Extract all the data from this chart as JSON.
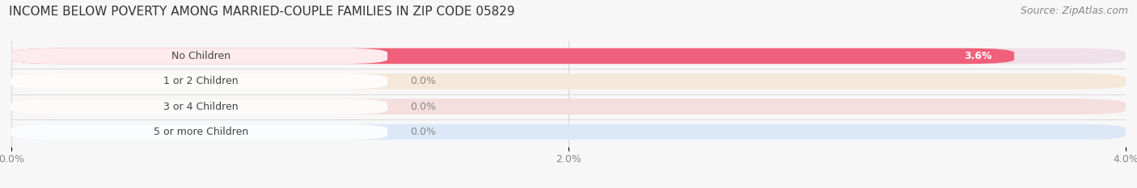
{
  "title": "INCOME BELOW POVERTY AMONG MARRIED-COUPLE FAMILIES IN ZIP CODE 05829",
  "source": "Source: ZipAtlas.com",
  "categories": [
    "No Children",
    "1 or 2 Children",
    "3 or 4 Children",
    "5 or more Children"
  ],
  "values": [
    3.6,
    0.0,
    0.0,
    0.0
  ],
  "bar_colors": [
    "#f0607a",
    "#e8b882",
    "#e88888",
    "#90aadc"
  ],
  "bar_bg_colors": [
    "#f0e0e8",
    "#f5e8d8",
    "#f5dede",
    "#dce8f8"
  ],
  "xlim": [
    0,
    4.0
  ],
  "xticks": [
    0.0,
    2.0,
    4.0
  ],
  "xtick_labels": [
    "0.0%",
    "2.0%",
    "4.0%"
  ],
  "background_color": "#f7f7f7",
  "title_fontsize": 11,
  "source_fontsize": 9,
  "tick_fontsize": 9,
  "label_fontsize": 9,
  "value_fontsize": 9
}
